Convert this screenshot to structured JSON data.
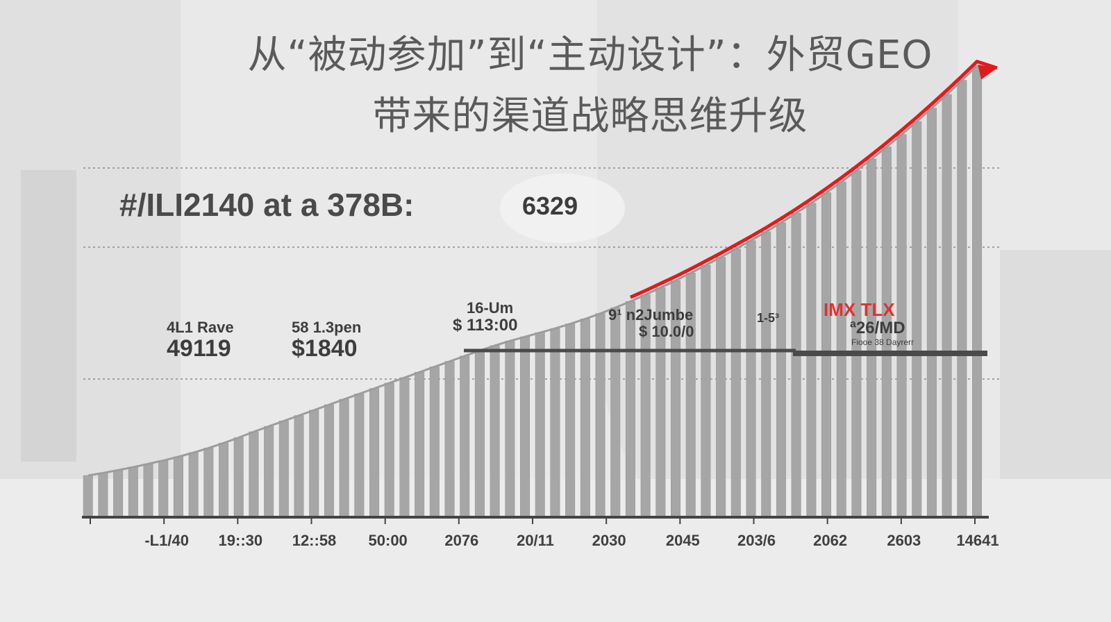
{
  "title": {
    "line1": "从“被动参加”到“主动设计”：外贸GEO",
    "line2": "带来的渠道战略思维升级"
  },
  "headline": {
    "text": "#/ILI2140 at a 378B:",
    "badge": "6329"
  },
  "annotations": [
    {
      "small": "4L1 Rave",
      "big": "49119"
    },
    {
      "small": "58 1.3pen",
      "big": "$1840"
    },
    {
      "small": "16-Um",
      "big": "$ 113:00"
    },
    {
      "small": "9¹ n2Jumbe",
      "big": "$ 10.0/0"
    },
    {
      "small": "1-5³",
      "big": ""
    },
    {
      "red": "IMX TLX",
      "mid": "ª26/MD",
      "tiny": "Fiooe 38 Dayrerr"
    }
  ],
  "colors": {
    "bars": "#a6a6a6",
    "bar_edge": "#9a9a9a",
    "trend": "#e11b1b",
    "grid": "#8a8a8a",
    "axis": "#444444",
    "ref_line": "#4a4a4a"
  },
  "chart_data": {
    "type": "bar",
    "x_tick_labels": [
      "-L1/40",
      "19::30",
      "12::58",
      "50:00",
      "2076",
      "20/11",
      "2030",
      "2045",
      "203/6",
      "2062",
      "2603",
      "14641"
    ],
    "bar_count": 60,
    "values_relative": [
      0.1,
      0.106,
      0.113,
      0.12,
      0.128,
      0.136,
      0.145,
      0.155,
      0.166,
      0.178,
      0.191,
      0.205,
      0.218,
      0.231,
      0.244,
      0.257,
      0.27,
      0.283,
      0.296,
      0.309,
      0.322,
      0.335,
      0.348,
      0.361,
      0.374,
      0.387,
      0.4,
      0.412,
      0.423,
      0.433,
      0.443,
      0.453,
      0.464,
      0.476,
      0.489,
      0.503,
      0.518,
      0.534,
      0.551,
      0.568,
      0.586,
      0.605,
      0.624,
      0.644,
      0.664,
      0.685,
      0.707,
      0.73,
      0.754,
      0.779,
      0.805,
      0.832,
      0.86,
      0.889,
      0.919,
      0.95,
      0.982,
      1.015,
      1.049,
      1.084
    ],
    "trend_start_index": 36,
    "reference_line_relative": 0.4,
    "grid": true,
    "title": "",
    "xlabel": "",
    "ylabel": ""
  }
}
